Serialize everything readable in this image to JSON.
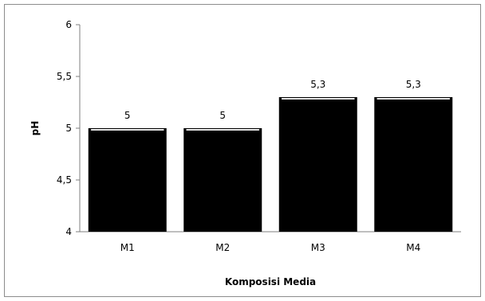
{
  "chart_data": {
    "type": "bar",
    "title": "",
    "xlabel": "Komposisi Media",
    "ylabel": "pH",
    "categories": [
      "M1",
      "M2",
      "M3",
      "M4"
    ],
    "values": [
      5,
      5,
      5.3,
      5.3
    ],
    "data_labels": [
      "5",
      "5",
      "5,3",
      "5,3"
    ],
    "ylim": [
      4,
      6
    ],
    "yticks": [
      4,
      4.5,
      5,
      5.5,
      6
    ],
    "ytick_labels": [
      "4",
      "4,5",
      "5",
      "5,5",
      "6"
    ],
    "grid": false,
    "legend": "none",
    "bar_color": "#000000"
  }
}
